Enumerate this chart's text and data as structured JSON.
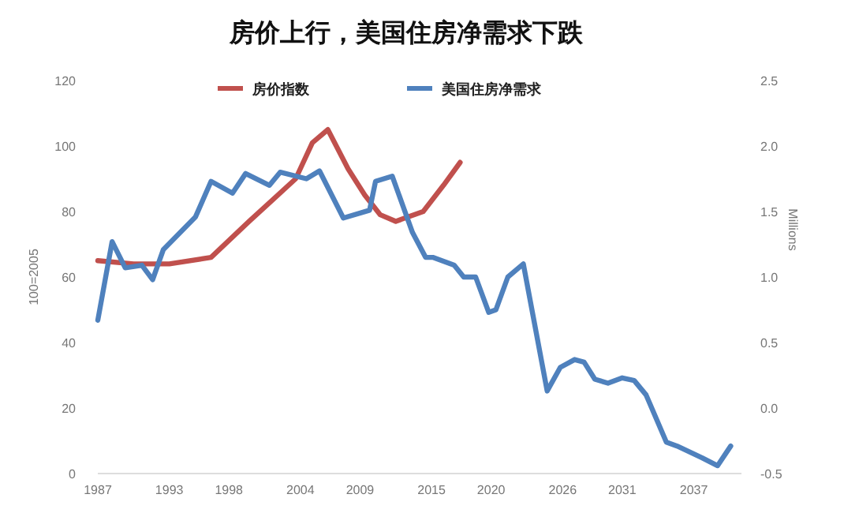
{
  "chart_data": {
    "type": "line",
    "title": "房价上行，美国住房净需求下跌",
    "ylabel": "100=2005",
    "y2label": "Millions",
    "legend": "top",
    "grid": false,
    "xlim": [
      1987,
      2041
    ],
    "xticks": [
      1987,
      1993,
      1998,
      2004,
      2009,
      2015,
      2020,
      2026,
      2031,
      2037
    ],
    "ylim": [
      0,
      120
    ],
    "yticks": [
      0,
      20,
      40,
      60,
      80,
      100,
      120
    ],
    "y2lim": [
      -0.5,
      2.5
    ],
    "y2ticks": [
      {
        "value": -0.5,
        "label": "-0.5"
      },
      {
        "value": 0,
        "label": "0.0"
      },
      {
        "value": 0.5,
        "label": "0.5"
      },
      {
        "value": 1,
        "label": "1.0"
      },
      {
        "value": 1.5,
        "label": "1.5"
      },
      {
        "value": 2,
        "label": "2.0"
      },
      {
        "value": 2.5,
        "label": "2.5"
      }
    ],
    "series": [
      {
        "name": "房价指数",
        "color": "#c0504d",
        "x": [
          1987,
          1990,
          1993,
          1996.5,
          1999.7,
          2003.6,
          2005,
          2006.3,
          2008,
          2009.4,
          2010.7,
          2012,
          2014.3,
          2016,
          2017.4
        ],
        "values": [
          65,
          64,
          64,
          66,
          77,
          90,
          101,
          105,
          93,
          85,
          79,
          77,
          80,
          88,
          95
        ]
      },
      {
        "name": "美国住房净需求",
        "color": "#4f81bd",
        "axis": "y2",
        "x": [
          1987,
          1988.2,
          1989.3,
          1990.7,
          1991.6,
          1992.5,
          1995.2,
          1996.5,
          1998.3,
          1999.4,
          2001.4,
          2002.3,
          2004.5,
          2005.6,
          2007.6,
          2009.8,
          2010.3,
          2011.7,
          2013.4,
          2014.5,
          2015.1,
          2016.9,
          2017.7,
          2018.7,
          2019.8,
          2020.4,
          2021.4,
          2022.7,
          2024.7,
          2025.8,
          2027,
          2027.8,
          2028.7,
          2029.8,
          2031,
          2032,
          2033,
          2034.7,
          2035.6,
          2037.7,
          2039,
          2040.1
        ],
        "values": [
          0.67,
          1.27,
          1.07,
          1.09,
          0.98,
          1.21,
          1.46,
          1.73,
          1.64,
          1.79,
          1.7,
          1.8,
          1.75,
          1.81,
          1.45,
          1.51,
          1.73,
          1.77,
          1.34,
          1.15,
          1.15,
          1.09,
          1.0,
          1.0,
          0.73,
          0.75,
          1.0,
          1.1,
          0.13,
          0.31,
          0.37,
          0.35,
          0.22,
          0.19,
          0.23,
          0.21,
          0.1,
          -0.26,
          -0.29,
          -0.38,
          -0.44,
          -0.29
        ]
      }
    ]
  }
}
